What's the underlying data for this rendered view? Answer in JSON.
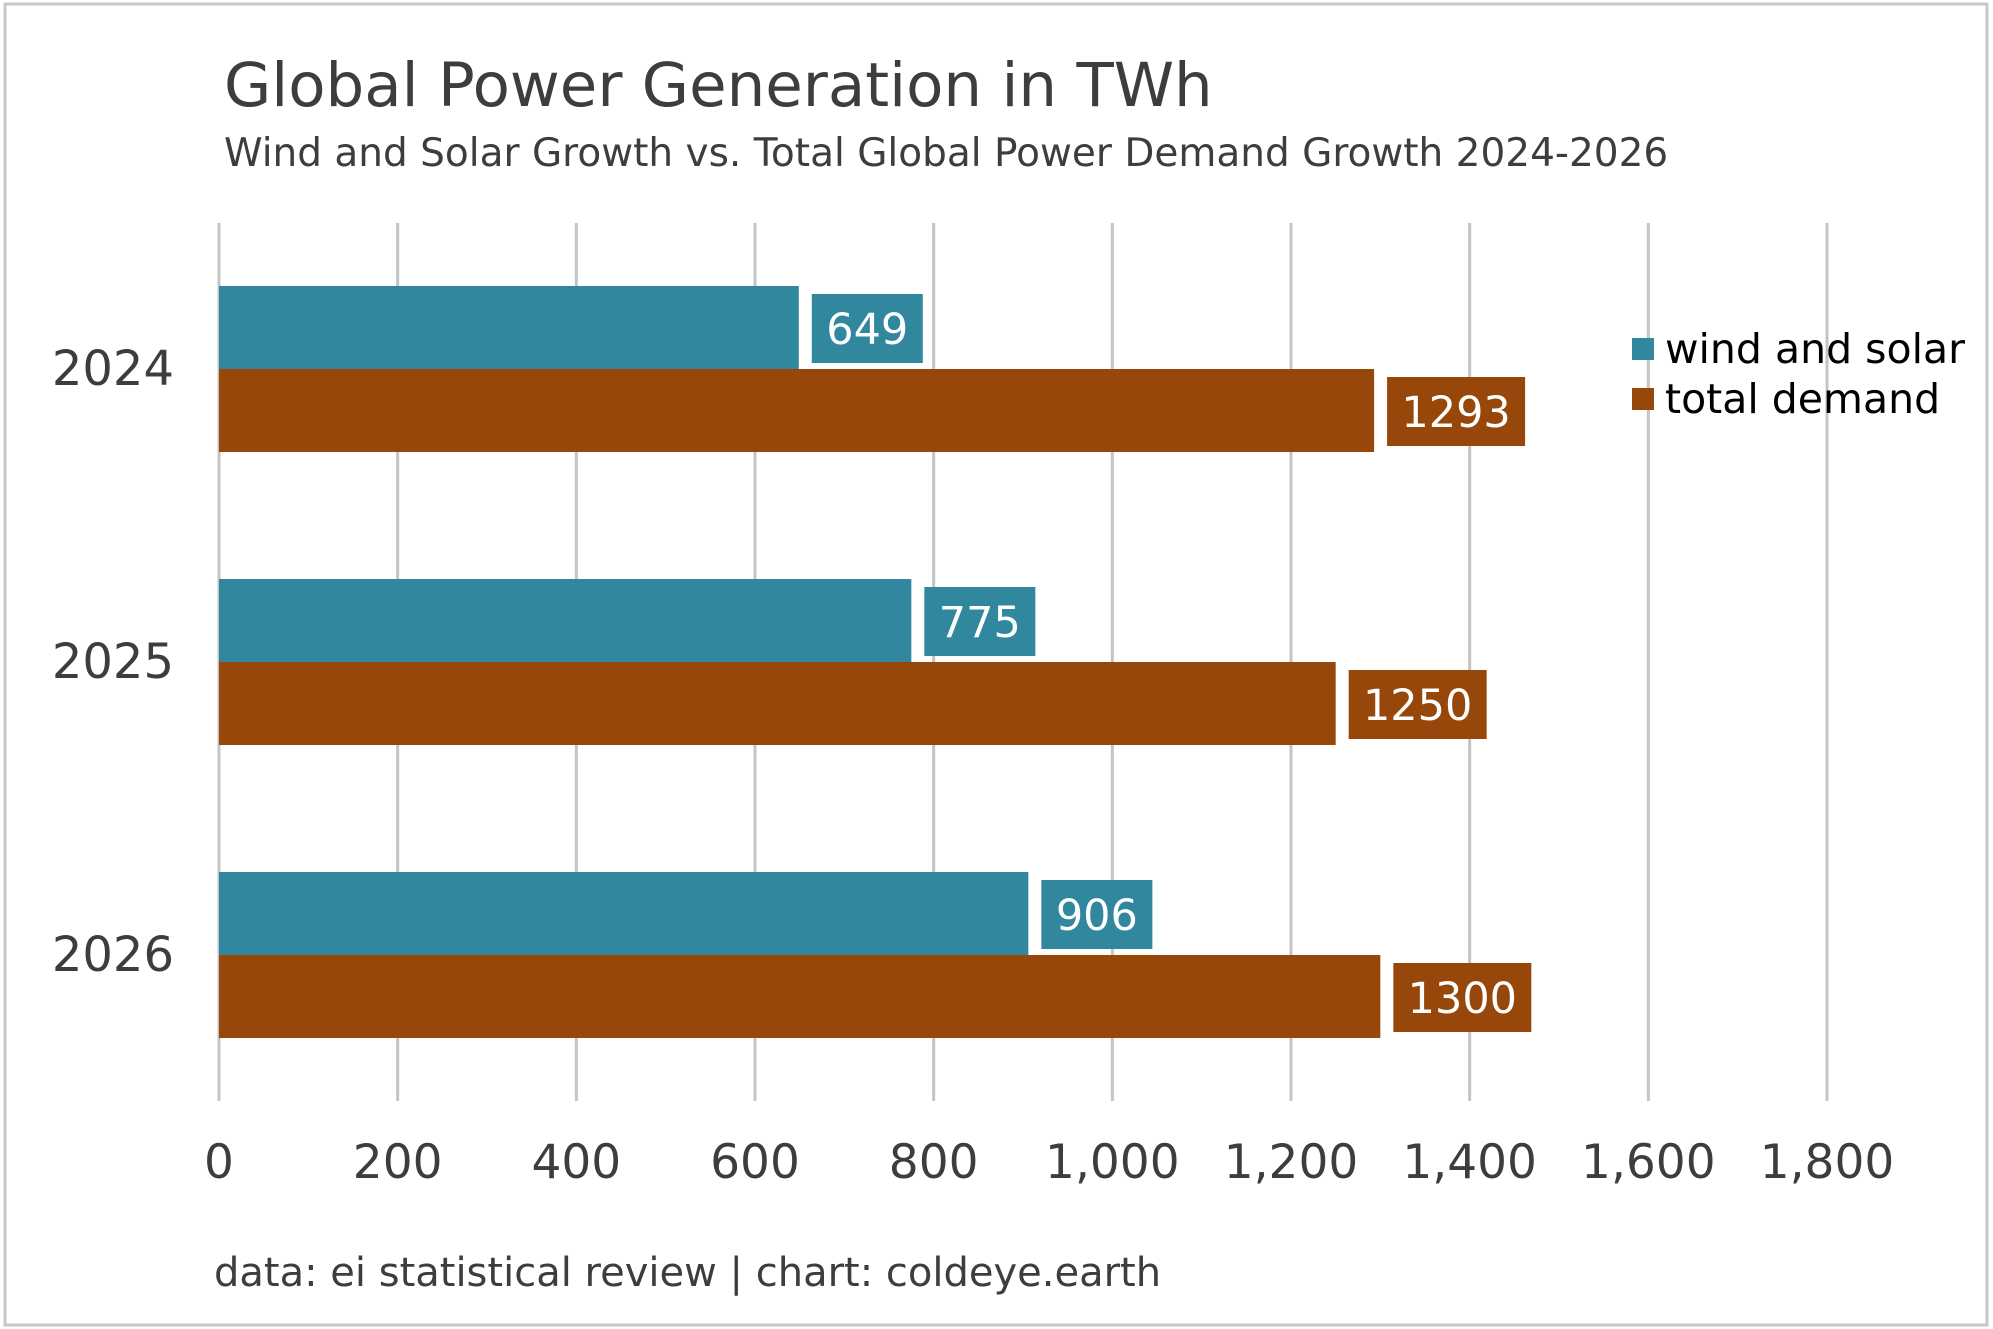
{
  "chart_data": {
    "type": "bar",
    "orientation": "horizontal",
    "title": "Global Power Generation in TWh",
    "subtitle": "Wind and Solar Growth vs. Total Global Power Demand Growth 2024-2026",
    "categories": [
      "2024",
      "2025",
      "2026"
    ],
    "series": [
      {
        "name": "wind and solar",
        "color": "#31879d",
        "values": [
          649,
          775,
          906
        ]
      },
      {
        "name": "total demand",
        "color": "#97470a",
        "values": [
          1293,
          1250,
          1300
        ]
      }
    ],
    "xlim": [
      0,
      1800
    ],
    "xticks": [
      0,
      200,
      400,
      600,
      800,
      1000,
      1200,
      1400,
      1600,
      1800
    ],
    "xtick_labels": [
      "0",
      "200",
      "400",
      "600",
      "800",
      "1,000",
      "1,200",
      "1,400",
      "1,600",
      "1,800"
    ],
    "xlabel": "",
    "ylabel": "",
    "grid": "vertical",
    "legend_position": "top-right",
    "footer": "data: ei statistical review | chart: coldeye.earth"
  }
}
